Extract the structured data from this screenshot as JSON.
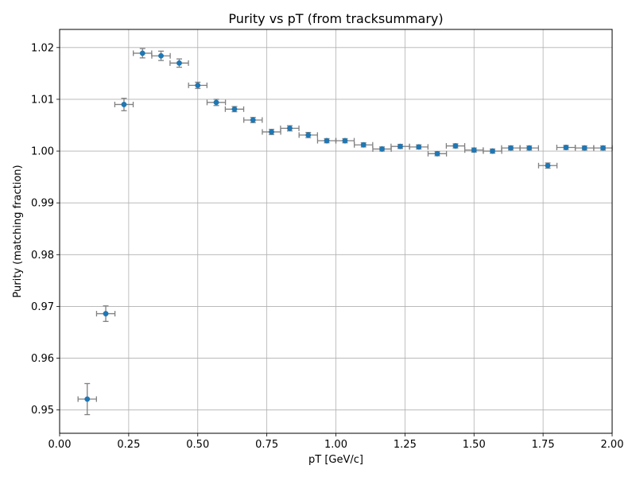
{
  "chart_data": {
    "type": "scatter",
    "title": "Purity vs pT (from tracksummary)",
    "xlabel": "pT [GeV/c]",
    "ylabel": "Purity (matching fraction)",
    "xlim": [
      0.0,
      2.0
    ],
    "ylim": [
      0.9455,
      1.0235
    ],
    "grid": true,
    "xticks": [
      "0.00",
      "0.25",
      "0.50",
      "0.75",
      "1.00",
      "1.25",
      "1.50",
      "1.75",
      "2.00"
    ],
    "xtick_values": [
      0.0,
      0.25,
      0.5,
      0.75,
      1.0,
      1.25,
      1.5,
      1.75,
      2.0
    ],
    "yticks": [
      "0.95",
      "0.96",
      "0.97",
      "0.98",
      "0.99",
      "1.00",
      "1.01",
      "1.02"
    ],
    "ytick_values": [
      0.95,
      0.96,
      0.97,
      0.98,
      0.99,
      1.0,
      1.01,
      1.02
    ],
    "marker_color": "#1f77b4",
    "errorbar_color": "#808080",
    "series": [
      {
        "x": [
          0.1,
          0.167,
          0.233,
          0.3,
          0.367,
          0.433,
          0.5,
          0.567,
          0.633,
          0.7,
          0.767,
          0.833,
          0.9,
          0.967,
          1.033,
          1.1,
          1.167,
          1.233,
          1.3,
          1.367,
          1.433,
          1.5,
          1.567,
          1.633,
          1.7,
          1.767,
          1.833,
          1.9,
          1.967
        ],
        "y": [
          0.9521,
          0.9686,
          1.009,
          1.0189,
          1.0184,
          1.017,
          1.0127,
          1.0094,
          1.0081,
          1.006,
          1.0037,
          1.0044,
          1.0031,
          1.002,
          1.002,
          1.0012,
          1.0004,
          1.0009,
          1.0008,
          0.9995,
          1.001,
          1.0002,
          1.0,
          1.0006,
          1.0006,
          0.9972,
          1.0007,
          1.0006,
          1.0006
        ],
        "xerr": [
          0.0333,
          0.0333,
          0.0333,
          0.0333,
          0.0333,
          0.0333,
          0.0333,
          0.0333,
          0.0333,
          0.0333,
          0.0333,
          0.0333,
          0.0333,
          0.0333,
          0.0333,
          0.0333,
          0.0333,
          0.0333,
          0.0333,
          0.0333,
          0.0333,
          0.0333,
          0.0333,
          0.0333,
          0.0333,
          0.0333,
          0.0333,
          0.0333,
          0.0333
        ],
        "yerr": [
          0.003,
          0.0015,
          0.0012,
          0.0009,
          0.0009,
          0.0008,
          0.0006,
          0.0006,
          0.0005,
          0.0005,
          0.0005,
          0.0005,
          0.0005,
          0.0004,
          0.0004,
          0.0004,
          0.0004,
          0.0004,
          0.0004,
          0.0004,
          0.0004,
          0.0004,
          0.0004,
          0.0004,
          0.0004,
          0.0005,
          0.0004,
          0.0004,
          0.0004
        ]
      }
    ]
  }
}
